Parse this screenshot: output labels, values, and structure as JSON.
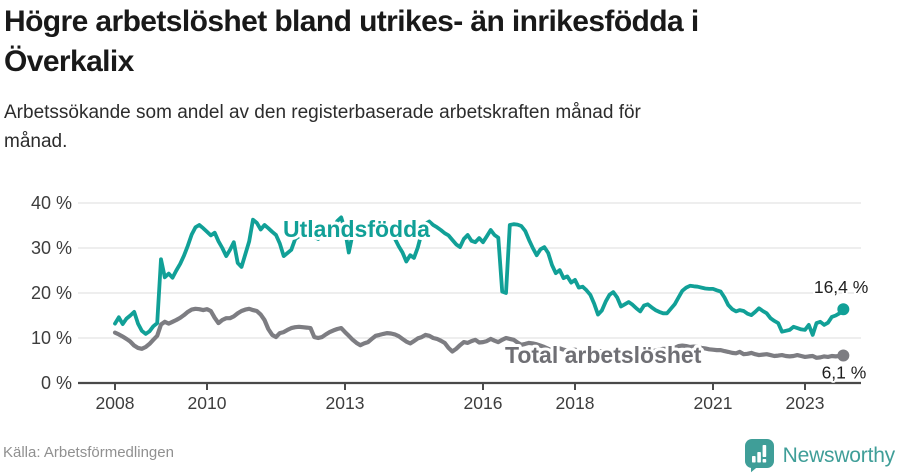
{
  "header": {
    "title": "Högre arbetslöshet bland utrikes- än inrikesfödda i Överkalix",
    "subtitle": "Arbetssökande som andel av den registerbaserade arbetskraften månad för månad."
  },
  "footer": {
    "source": "Källa: Arbetsförmedlingen",
    "brand": "Newsworthy"
  },
  "colors": {
    "accent_teal": "#11a097",
    "line_gray": "#7d7d82",
    "gray_label": "#6f6f74",
    "grid": "#e4e4e4",
    "axis": "#4a4a4a",
    "tick_text": "#3d3d3d",
    "end_label_text": "#1f1f1f",
    "brand_teal": "#3f9e98"
  },
  "chart_data": {
    "type": "line",
    "title": "Högre arbetslöshet bland utrikes- än inrikesfödda i Överkalix",
    "subtitle": "Arbetssökande som andel av den registerbaserade arbetskraften månad för månad.",
    "x_unit": "monthly, decimal years",
    "x_start": 2008.0,
    "x_step": 0.08333,
    "x_end_label_months": "Jan 2008 – Nov 2023",
    "xlim": [
      2007.9,
      2024.2
    ],
    "ylim": [
      0,
      41
    ],
    "grid": true,
    "legend_position": "inline-labels",
    "x_ticks": [
      2008,
      2010,
      2013,
      2016,
      2018,
      2021,
      2023
    ],
    "y_ticks": [
      0,
      10,
      20,
      30,
      40
    ],
    "y_tick_labels": [
      "0 %",
      "10 %",
      "20 %",
      "30 %",
      "40 %"
    ],
    "series": [
      {
        "name": "Total arbetslöshet",
        "color": "#7d7d82",
        "label_color": "#6f6f74",
        "end_label": "6,1 %",
        "end_value": 6.1,
        "values": [
          11.2,
          10.8,
          10.3,
          9.8,
          9.2,
          8.3,
          7.8,
          7.6,
          8.0,
          8.7,
          9.6,
          10.5,
          13.0,
          13.6,
          13.2,
          13.6,
          14.0,
          14.5,
          15.1,
          15.8,
          16.3,
          16.5,
          16.4,
          16.2,
          16.4,
          16.0,
          14.5,
          13.3,
          14.0,
          14.4,
          14.4,
          14.8,
          15.5,
          16.0,
          16.3,
          16.5,
          16.2,
          16.0,
          15.2,
          14.0,
          12.0,
          10.7,
          10.2,
          11.1,
          11.3,
          11.8,
          12.2,
          12.4,
          12.5,
          12.4,
          12.3,
          12.2,
          10.2,
          10.0,
          10.2,
          10.8,
          11.3,
          11.7,
          12.0,
          12.2,
          11.3,
          10.5,
          9.6,
          8.9,
          8.4,
          8.8,
          9.1,
          9.8,
          10.5,
          10.7,
          10.9,
          11.1,
          11.0,
          10.8,
          10.4,
          9.8,
          9.2,
          8.8,
          9.3,
          9.9,
          10.2,
          10.7,
          10.5,
          10.0,
          9.8,
          9.4,
          8.9,
          7.8,
          7.0,
          7.6,
          8.4,
          9.1,
          8.9,
          9.3,
          9.6,
          9.0,
          9.1,
          9.3,
          9.8,
          9.4,
          9.1,
          9.6,
          10.0,
          9.8,
          9.6,
          9.0,
          8.5,
          8.7,
          8.9,
          8.8,
          8.6,
          8.3,
          8.0,
          7.6,
          7.3,
          7.5,
          7.7,
          7.4,
          7.2,
          7.3,
          7.4,
          7.2,
          7.0,
          6.8,
          6.6,
          6.8,
          7.0,
          7.1,
          7.0,
          6.9,
          7.0,
          7.1,
          7.0,
          6.9,
          6.8,
          6.9,
          7.0,
          7.2,
          7.3,
          7.2,
          7.1,
          7.2,
          7.4,
          7.6,
          7.6,
          7.5,
          7.8,
          8.2,
          8.3,
          8.2,
          8.0,
          8.1,
          8.0,
          7.8,
          7.7,
          7.5,
          7.4,
          7.3,
          7.3,
          7.1,
          6.9,
          6.7,
          6.6,
          6.9,
          6.4,
          6.5,
          6.7,
          6.4,
          6.2,
          6.3,
          6.4,
          6.2,
          6.0,
          6.1,
          6.2,
          6.0,
          5.9,
          6.0,
          6.2,
          6.0,
          5.8,
          5.9,
          6.0,
          5.6,
          5.7,
          5.9,
          5.8,
          6.0,
          5.9,
          6.0,
          6.1
        ]
      },
      {
        "name": "Utlandsfödda",
        "color": "#11a097",
        "label_color": "#11a097",
        "end_label": "16,4 %",
        "end_value": 16.4,
        "values": [
          13.2,
          14.6,
          13.1,
          14.3,
          15.0,
          15.8,
          13.2,
          11.6,
          10.9,
          11.5,
          12.6,
          13.3,
          27.5,
          23.5,
          24.3,
          23.4,
          25.0,
          26.5,
          28.3,
          30.5,
          33.0,
          34.6,
          35.1,
          34.4,
          33.6,
          32.8,
          33.4,
          31.5,
          30.0,
          28.2,
          29.6,
          31.3,
          26.7,
          25.8,
          28.6,
          31.5,
          36.3,
          35.6,
          34.1,
          35.1,
          34.4,
          33.6,
          32.9,
          31.0,
          28.2,
          28.9,
          29.6,
          32.0,
          32.6,
          33.1,
          33.6,
          33.1,
          32.5,
          32.0,
          33.0,
          33.6,
          33.2,
          34.5,
          36.0,
          36.8,
          34.0,
          29.0,
          33.2,
          33.6,
          33.1,
          32.7,
          33.1,
          33.5,
          33.0,
          32.7,
          33.0,
          33.4,
          33.0,
          32.1,
          30.4,
          29.0,
          27.0,
          28.4,
          27.8,
          30.1,
          33.4,
          35.4,
          35.9,
          35.1,
          34.6,
          34.0,
          33.3,
          32.8,
          31.8,
          30.8,
          30.2,
          32.0,
          32.9,
          31.6,
          31.3,
          32.2,
          31.3,
          32.6,
          34.0,
          32.9,
          32.3,
          20.3,
          20.0,
          35.1,
          35.3,
          35.2,
          34.9,
          33.8,
          31.8,
          30.0,
          28.4,
          29.7,
          30.2,
          28.9,
          26.2,
          24.4,
          25.1,
          23.3,
          23.7,
          22.3,
          22.9,
          21.2,
          21.4,
          20.6,
          19.6,
          17.6,
          15.2,
          16.1,
          18.1,
          19.6,
          20.2,
          19.0,
          17.0,
          17.5,
          18.0,
          17.4,
          16.6,
          15.9,
          17.2,
          17.5,
          16.8,
          16.2,
          15.8,
          15.5,
          15.5,
          16.5,
          17.5,
          19.0,
          20.5,
          21.2,
          21.6,
          21.5,
          21.4,
          21.2,
          21.0,
          20.9,
          20.9,
          20.6,
          20.3,
          19.0,
          17.3,
          16.4,
          15.9,
          16.2,
          16.0,
          15.4,
          15.1,
          15.8,
          16.6,
          16.0,
          15.5,
          14.4,
          13.8,
          13.3,
          11.4,
          11.6,
          11.8,
          12.5,
          12.2,
          11.9,
          11.8,
          12.9,
          10.7,
          13.3,
          13.6,
          12.9,
          13.4,
          14.7,
          15.0,
          15.5,
          16.4
        ]
      }
    ]
  }
}
